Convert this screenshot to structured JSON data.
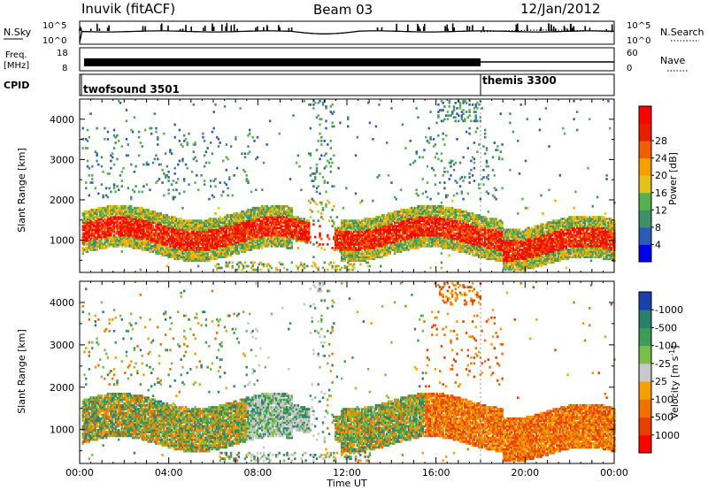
{
  "header": {
    "site": "Inuvik (fitACF)",
    "beam": "Beam 03",
    "date": "12/Jan/2012"
  },
  "summary": {
    "nsky_label": "N.Sky",
    "nsky_ticks": [
      "10^5",
      "10^0"
    ],
    "nsearch_label": "N.Search",
    "freq_label_1": "Freq.",
    "freq_label_2": "[MHz]",
    "freq_ticks": [
      "18",
      "8"
    ],
    "nave_label": "Nave",
    "nave_ticks": [
      "60",
      "0"
    ],
    "cpid_label": "CPID",
    "cpid_segments": [
      {
        "name": "twofsound 3501",
        "start_hour": 0
      },
      {
        "name": "themis 3300",
        "start_hour": 18
      }
    ]
  },
  "colors": {
    "power": [
      "#0000ee",
      "#2f5bb8",
      "#3f8f6a",
      "#56b04d",
      "#e2c21b",
      "#f5a000",
      "#f06000",
      "#e81d00",
      "#ff0000"
    ],
    "velocity": [
      "#1a3fb0",
      "#2b7f6f",
      "#3f9a5a",
      "#78c045",
      "#c8c8c8",
      "#f5a000",
      "#f07000",
      "#e84000",
      "#ff0000"
    ]
  },
  "chart_data": [
    {
      "type": "heatmap",
      "name": "power",
      "xlabel": "",
      "ylabel": "Slant Range [km]",
      "xlim": [
        0,
        24
      ],
      "ylim": [
        200,
        4500
      ],
      "yticks": [
        "1000",
        "2000",
        "3000",
        "4000"
      ],
      "colorbar_label": "Power [dB]",
      "colorbar_ticks": [
        "4",
        "8",
        "12",
        "16",
        "20",
        "24",
        "28"
      ],
      "colorbar_range": [
        0,
        30
      ]
    },
    {
      "type": "heatmap",
      "name": "velocity",
      "xlabel": "Time UT",
      "ylabel": "Slant Range [km]",
      "xlim": [
        0,
        24
      ],
      "ylim": [
        200,
        4500
      ],
      "xticks": [
        "00:00",
        "04:00",
        "08:00",
        "12:00",
        "16:00",
        "20:00",
        "00:00"
      ],
      "yticks": [
        "1000",
        "2000",
        "3000",
        "4000"
      ],
      "colorbar_label": "Velocity [m s",
      "colorbar_label_sup": "-1",
      "colorbar_label_end": "]",
      "colorbar_ticks": [
        "1000",
        "500",
        "100",
        "25",
        "-25",
        "-100",
        "-500",
        "-1000"
      ]
    }
  ]
}
